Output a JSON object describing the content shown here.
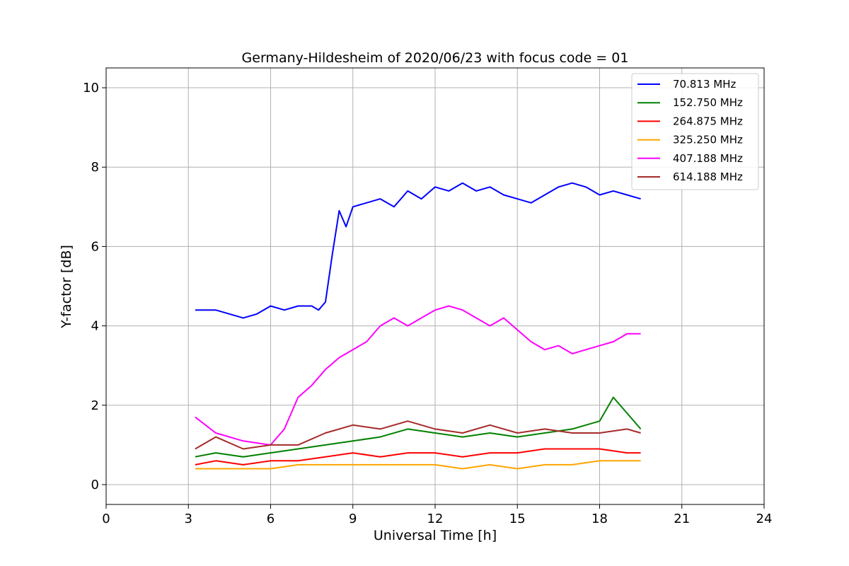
{
  "chart_data": {
    "type": "line",
    "title": "Germany-Hildesheim of 2020/06/23 with focus code = 01",
    "xlabel": "Universal Time [h]",
    "ylabel": "Y-factor [dB]",
    "xlim": [
      0,
      24
    ],
    "ylim": [
      -0.5,
      10.5
    ],
    "xticks": [
      0,
      3,
      6,
      9,
      12,
      15,
      18,
      21,
      24
    ],
    "yticks": [
      0,
      2,
      4,
      6,
      8,
      10
    ],
    "grid": true,
    "legend_position": "top-right",
    "series": [
      {
        "name": " 70.813 MHz",
        "color": "#0000ff",
        "x": [
          3.25,
          4.0,
          4.5,
          5.0,
          5.5,
          6.0,
          6.5,
          7.0,
          7.5,
          7.75,
          8.0,
          8.25,
          8.5,
          8.75,
          9.0,
          9.5,
          10.0,
          10.5,
          11.0,
          11.5,
          12.0,
          12.5,
          13.0,
          13.5,
          14.0,
          14.5,
          15.0,
          15.5,
          16.0,
          16.5,
          17.0,
          17.5,
          18.0,
          18.5,
          19.0,
          19.5
        ],
        "y": [
          4.4,
          4.4,
          4.3,
          4.2,
          4.3,
          4.5,
          4.4,
          4.5,
          4.5,
          4.4,
          4.6,
          5.8,
          6.9,
          6.5,
          7.0,
          7.1,
          7.2,
          7.0,
          7.4,
          7.2,
          7.5,
          7.4,
          7.6,
          7.4,
          7.5,
          7.3,
          7.2,
          7.1,
          7.3,
          7.5,
          7.6,
          7.5,
          7.3,
          7.4,
          7.3,
          7.2
        ]
      },
      {
        "name": "152.750 MHz",
        "color": "#008000",
        "x": [
          3.25,
          4.0,
          5.0,
          6.0,
          7.0,
          8.0,
          9.0,
          10.0,
          11.0,
          12.0,
          13.0,
          14.0,
          15.0,
          16.0,
          17.0,
          18.0,
          18.5,
          19.0,
          19.5
        ],
        "y": [
          0.7,
          0.8,
          0.7,
          0.8,
          0.9,
          1.0,
          1.1,
          1.2,
          1.4,
          1.3,
          1.2,
          1.3,
          1.2,
          1.3,
          1.4,
          1.6,
          2.2,
          1.8,
          1.4
        ]
      },
      {
        "name": "264.875 MHz",
        "color": "#ff0000",
        "x": [
          3.25,
          4.0,
          5.0,
          6.0,
          7.0,
          8.0,
          9.0,
          10.0,
          11.0,
          12.0,
          13.0,
          14.0,
          15.0,
          16.0,
          17.0,
          18.0,
          19.0,
          19.5
        ],
        "y": [
          0.5,
          0.6,
          0.5,
          0.6,
          0.6,
          0.7,
          0.8,
          0.7,
          0.8,
          0.8,
          0.7,
          0.8,
          0.8,
          0.9,
          0.9,
          0.9,
          0.8,
          0.8
        ]
      },
      {
        "name": "325.250 MHz",
        "color": "#ffa500",
        "x": [
          3.25,
          4.0,
          5.0,
          6.0,
          7.0,
          8.0,
          9.0,
          10.0,
          11.0,
          12.0,
          13.0,
          14.0,
          15.0,
          16.0,
          17.0,
          18.0,
          19.0,
          19.5
        ],
        "y": [
          0.4,
          0.4,
          0.4,
          0.4,
          0.5,
          0.5,
          0.5,
          0.5,
          0.5,
          0.5,
          0.4,
          0.5,
          0.4,
          0.5,
          0.5,
          0.6,
          0.6,
          0.6
        ]
      },
      {
        "name": "407.188 MHz",
        "color": "#ff00ff",
        "x": [
          3.25,
          4.0,
          5.0,
          6.0,
          6.5,
          7.0,
          7.5,
          8.0,
          8.5,
          9.0,
          9.5,
          10.0,
          10.5,
          11.0,
          11.5,
          12.0,
          12.5,
          13.0,
          13.5,
          14.0,
          14.5,
          15.0,
          15.5,
          16.0,
          16.5,
          17.0,
          17.5,
          18.0,
          18.5,
          19.0,
          19.5
        ],
        "y": [
          1.7,
          1.3,
          1.1,
          1.0,
          1.4,
          2.2,
          2.5,
          2.9,
          3.2,
          3.4,
          3.6,
          4.0,
          4.2,
          4.0,
          4.2,
          4.4,
          4.5,
          4.4,
          4.2,
          4.0,
          4.2,
          3.9,
          3.6,
          3.4,
          3.5,
          3.3,
          3.4,
          3.5,
          3.6,
          3.8,
          3.8
        ]
      },
      {
        "name": "614.188 MHz",
        "color": "#a52a2a",
        "x": [
          3.25,
          4.0,
          5.0,
          6.0,
          7.0,
          8.0,
          9.0,
          10.0,
          11.0,
          12.0,
          13.0,
          14.0,
          15.0,
          16.0,
          17.0,
          18.0,
          19.0,
          19.5
        ],
        "y": [
          0.9,
          1.2,
          0.9,
          1.0,
          1.0,
          1.3,
          1.5,
          1.4,
          1.6,
          1.4,
          1.3,
          1.5,
          1.3,
          1.4,
          1.3,
          1.3,
          1.4,
          1.3
        ]
      }
    ]
  }
}
